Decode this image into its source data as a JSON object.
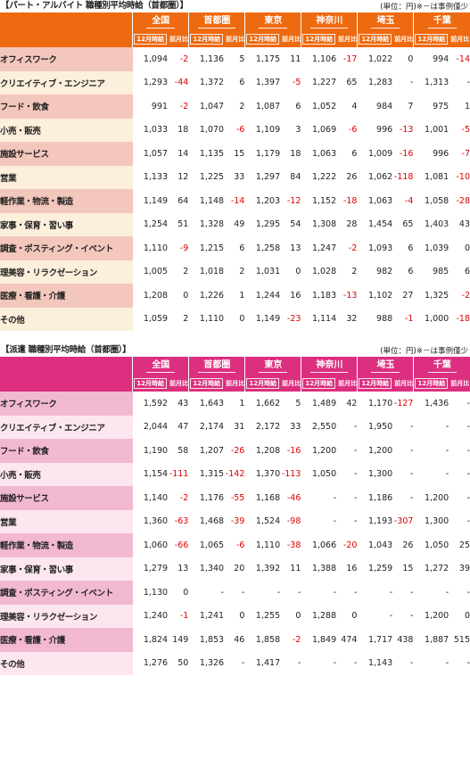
{
  "regions": [
    "全国",
    "首都圏",
    "東京",
    "神奈川",
    "埼玉",
    "千葉"
  ],
  "subheaders": {
    "wage": "12月時給",
    "change": "前月比"
  },
  "unit_note": "(単位：円)※－は事例僅少",
  "tables": [
    {
      "id": "part",
      "title": "【パート・アルバイト 職種別平均時給（首都圏）】",
      "rows": [
        {
          "label": "オフィスワーク",
          "cells": [
            "1,094",
            "-2",
            "1,136",
            "5",
            "1,175",
            "11",
            "1,106",
            "-17",
            "1,022",
            "0",
            "994",
            "-14"
          ]
        },
        {
          "label": "クリエイティブ・エンジニア",
          "cells": [
            "1,293",
            "-44",
            "1,372",
            "6",
            "1,397",
            "-5",
            "1,227",
            "65",
            "1,283",
            "-",
            "1,313",
            "-"
          ]
        },
        {
          "label": "フード・飲食",
          "cells": [
            "991",
            "-2",
            "1,047",
            "2",
            "1,087",
            "6",
            "1,052",
            "4",
            "984",
            "7",
            "975",
            "1"
          ]
        },
        {
          "label": "小売・販売",
          "cells": [
            "1,033",
            "18",
            "1,070",
            "-6",
            "1,109",
            "3",
            "1,069",
            "-6",
            "996",
            "-13",
            "1,001",
            "-5"
          ]
        },
        {
          "label": "施設サービス",
          "cells": [
            "1,057",
            "14",
            "1,135",
            "15",
            "1,179",
            "18",
            "1,063",
            "6",
            "1,009",
            "-16",
            "996",
            "-7"
          ]
        },
        {
          "label": "営業",
          "cells": [
            "1,133",
            "12",
            "1,225",
            "33",
            "1,297",
            "84",
            "1,222",
            "26",
            "1,062",
            "-118",
            "1,081",
            "-10"
          ]
        },
        {
          "label": "軽作業・物流・製造",
          "cells": [
            "1,149",
            "64",
            "1,148",
            "-14",
            "1,203",
            "-12",
            "1,152",
            "-18",
            "1,063",
            "-4",
            "1,058",
            "-28"
          ]
        },
        {
          "label": "家事・保育・習い事",
          "cells": [
            "1,254",
            "51",
            "1,328",
            "49",
            "1,295",
            "54",
            "1,308",
            "28",
            "1,454",
            "65",
            "1,403",
            "43"
          ]
        },
        {
          "label": "調査・ポスティング・イベント",
          "cells": [
            "1,110",
            "-9",
            "1,215",
            "6",
            "1,258",
            "13",
            "1,247",
            "-2",
            "1,093",
            "6",
            "1,039",
            "0"
          ]
        },
        {
          "label": "理美容・リラクゼーション",
          "cells": [
            "1,005",
            "2",
            "1,018",
            "2",
            "1,031",
            "0",
            "1,028",
            "2",
            "982",
            "6",
            "985",
            "6"
          ]
        },
        {
          "label": "医療・看護・介護",
          "cells": [
            "1,208",
            "0",
            "1,226",
            "1",
            "1,244",
            "16",
            "1,183",
            "-13",
            "1,102",
            "27",
            "1,325",
            "-2"
          ]
        },
        {
          "label": "その他",
          "cells": [
            "1,059",
            "2",
            "1,110",
            "0",
            "1,149",
            "-23",
            "1,114",
            "32",
            "988",
            "-1",
            "1,000",
            "-18"
          ]
        }
      ]
    },
    {
      "id": "haken",
      "title": "【派遣 職種別平均時給（首都圏）】",
      "rows": [
        {
          "label": "オフィスワーク",
          "cells": [
            "1,592",
            "43",
            "1,643",
            "1",
            "1,662",
            "5",
            "1,489",
            "42",
            "1,170",
            "-127",
            "1,436",
            "-"
          ]
        },
        {
          "label": "クリエイティブ・エンジニア",
          "cells": [
            "2,044",
            "47",
            "2,174",
            "31",
            "2,172",
            "33",
            "2,550",
            "-",
            "1,950",
            "-",
            "-",
            "-"
          ]
        },
        {
          "label": "フード・飲食",
          "cells": [
            "1,190",
            "58",
            "1,207",
            "-26",
            "1,208",
            "-16",
            "1,200",
            "-",
            "1,200",
            "-",
            "-",
            "-"
          ]
        },
        {
          "label": "小売・販売",
          "cells": [
            "1,154",
            "-111",
            "1,315",
            "-142",
            "1,370",
            "-113",
            "1,050",
            "-",
            "1,300",
            "-",
            "-",
            "-"
          ]
        },
        {
          "label": "施設サービス",
          "cells": [
            "1,140",
            "-2",
            "1,176",
            "-55",
            "1,168",
            "-46",
            "-",
            "-",
            "1,186",
            "-",
            "1,200",
            "-"
          ]
        },
        {
          "label": "営業",
          "cells": [
            "1,360",
            "-63",
            "1,468",
            "-39",
            "1,524",
            "-98",
            "-",
            "-",
            "1,193",
            "-307",
            "1,300",
            "-"
          ]
        },
        {
          "label": "軽作業・物流・製造",
          "cells": [
            "1,060",
            "-66",
            "1,065",
            "-6",
            "1,110",
            "-38",
            "1,066",
            "-20",
            "1,043",
            "26",
            "1,050",
            "25"
          ]
        },
        {
          "label": "家事・保育・習い事",
          "cells": [
            "1,279",
            "13",
            "1,340",
            "20",
            "1,392",
            "11",
            "1,388",
            "16",
            "1,259",
            "15",
            "1,272",
            "39"
          ]
        },
        {
          "label": "調査・ポスティング・イベント",
          "cells": [
            "1,130",
            "0",
            "-",
            "-",
            "-",
            "-",
            "-",
            "-",
            "-",
            "-",
            "-",
            "-"
          ]
        },
        {
          "label": "理美容・リラクゼーション",
          "cells": [
            "1,240",
            "-1",
            "1,241",
            "0",
            "1,255",
            "0",
            "1,288",
            "0",
            "-",
            "-",
            "1,200",
            "0"
          ]
        },
        {
          "label": "医療・看護・介護",
          "cells": [
            "1,824",
            "149",
            "1,853",
            "46",
            "1,858",
            "-2",
            "1,849",
            "474",
            "1,717",
            "438",
            "1,887",
            "515"
          ]
        },
        {
          "label": "その他",
          "cells": [
            "1,276",
            "50",
            "1,326",
            "-",
            "1,417",
            "-",
            "-",
            "-",
            "1,143",
            "-",
            "-",
            "-"
          ]
        }
      ]
    }
  ]
}
